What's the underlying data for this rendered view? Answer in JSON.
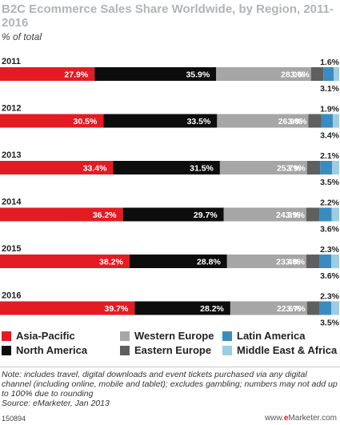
{
  "header": {
    "title": "B2C Ecommerce Sales Share Worldwide, by Region, 2011-2016",
    "subtitle": "% of total"
  },
  "chart_data": {
    "type": "bar",
    "orientation": "horizontal",
    "stacked": true,
    "categories": [
      "2011",
      "2012",
      "2013",
      "2014",
      "2015",
      "2016"
    ],
    "series": [
      {
        "name": "Asia-Pacific",
        "color": "#e31b23",
        "values": [
          27.9,
          30.5,
          33.4,
          36.2,
          38.2,
          39.7
        ],
        "labels": [
          "27.9%",
          "30.5%",
          "33.4%",
          "36.2%",
          "38.2%",
          "39.7%"
        ]
      },
      {
        "name": "North America",
        "color": "#0d0d0d",
        "values": [
          35.9,
          33.5,
          31.5,
          29.7,
          28.8,
          28.2
        ],
        "labels": [
          "35.9%",
          "33.5%",
          "31.5%",
          "29.7%",
          "28.8%",
          "28.2%"
        ]
      },
      {
        "name": "Western Europe",
        "color": "#a6a6a6",
        "values": [
          28.0,
          26.9,
          25.7,
          24.3,
          23.4,
          22.6
        ],
        "labels": [
          "28.0%",
          "26.9%",
          "25.7%",
          "24.3%",
          "23.4%",
          "22.6%"
        ]
      },
      {
        "name": "Eastern Europe",
        "color": "#5f5f5f",
        "values": [
          3.6,
          3.8,
          3.9,
          3.9,
          3.8,
          3.7
        ],
        "labels": [
          "3.6%",
          "3.8%",
          "3.9%",
          "3.9%",
          "3.8%",
          "3.7%"
        ]
      },
      {
        "name": "Latin America",
        "color": "#3a8cc0",
        "values": [
          3.1,
          3.4,
          3.5,
          3.6,
          3.6,
          3.5
        ],
        "labels": [
          "3.1%",
          "3.4%",
          "3.5%",
          "3.6%",
          "3.6%",
          "3.5%"
        ]
      },
      {
        "name": "Middle East & Africa",
        "color": "#9ccde3",
        "values": [
          1.6,
          1.9,
          2.1,
          2.2,
          2.3,
          2.3
        ],
        "labels": [
          "1.6%",
          "1.9%",
          "2.1%",
          "2.2%",
          "2.3%",
          "2.3%"
        ]
      }
    ],
    "xlim": [
      0,
      100
    ],
    "grid": false,
    "legend": "bottom",
    "title": "B2C Ecommerce Sales Share Worldwide, by Region, 2011-2016",
    "subtitle": "% of total"
  },
  "footer": {
    "note": "Note: includes travel, digital downloads and event tickets purchased via any digital channel (including online, mobile and tablet); excludes gambling; numbers may not add up to 100% due to rounding",
    "source": "Source: eMarketer, Jan 2013",
    "id": "150894",
    "brand_prefix": "www.",
    "brand_e": "e",
    "brand_rest": "Marketer.com"
  }
}
